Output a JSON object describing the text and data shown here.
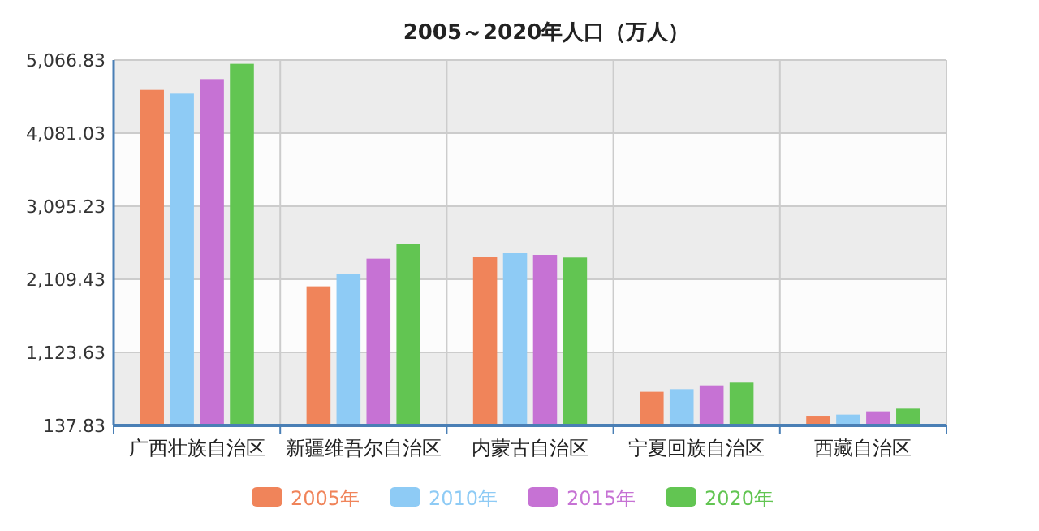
{
  "chart_data": {
    "type": "bar",
    "title": "2005～2020年人口（万人）",
    "categories": [
      "广西壮族自治区",
      "新疆维吾尔自治区",
      "内蒙古自治区",
      "宁夏回族自治区",
      "西藏自治区"
    ],
    "series": [
      {
        "name": "2005年",
        "color": "#f0845a",
        "values": [
          4665,
          2015,
          2409,
          591,
          269
        ]
      },
      {
        "name": "2010年",
        "color": "#8ecbf5",
        "values": [
          4614,
          2183,
          2467,
          627,
          284
        ]
      },
      {
        "name": "2015年",
        "color": "#c672d4",
        "values": [
          4811,
          2387,
          2438,
          678,
          328
        ]
      },
      {
        "name": "2020年",
        "color": "#62c552",
        "values": [
          5016,
          2591,
          2402,
          715,
          364
        ]
      }
    ],
    "ylim": [
      137.83,
      5066.83
    ],
    "yticks": [
      {
        "value": 137.83,
        "label": "137.83"
      },
      {
        "value": 1123.63,
        "label": "1,123.63"
      },
      {
        "value": 2109.43,
        "label": "2,109.43"
      },
      {
        "value": 3095.23,
        "label": "3,095.23"
      },
      {
        "value": 4081.03,
        "label": "4,081.03"
      },
      {
        "value": 5066.83,
        "label": "5,066.83"
      }
    ],
    "grid": true,
    "legend": "bottom"
  }
}
